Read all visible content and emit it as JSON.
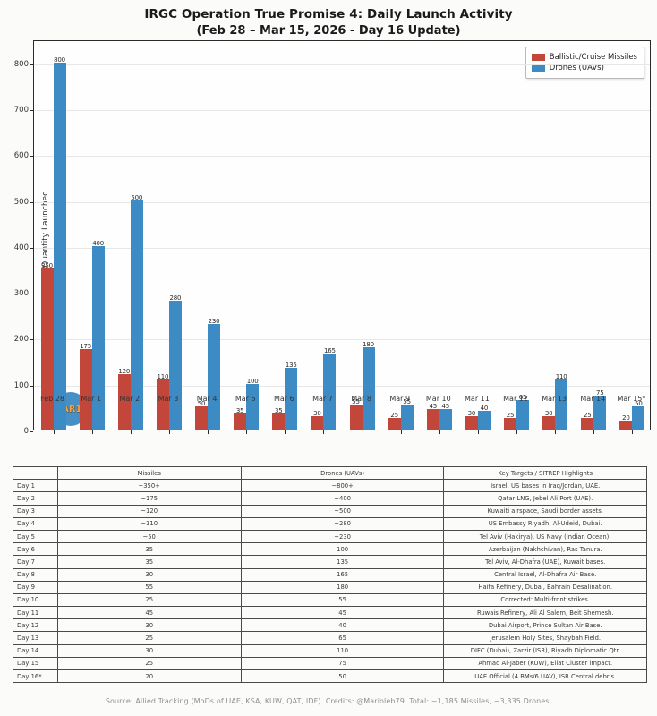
{
  "title": {
    "line1": "IRGC Operation True Promise 4: Daily Launch Activity",
    "line2": "(Feb 28 – Mar 15, 2026 - Day 16 Update)"
  },
  "chart_data": {
    "type": "bar",
    "categories": [
      "Feb 28",
      "Mar 1",
      "Mar 2",
      "Mar 3",
      "Mar 4",
      "Mar 5",
      "Mar 6",
      "Mar 7",
      "Mar 8",
      "Mar 9",
      "Mar 10",
      "Mar 11",
      "Mar 12",
      "Mar 13",
      "Mar 14",
      "Mar 15*"
    ],
    "series": [
      {
        "name": "Ballistic/Cruise Missiles",
        "color": "#c2463a",
        "values": [
          350,
          175,
          120,
          110,
          50,
          35,
          35,
          30,
          55,
          25,
          45,
          30,
          25,
          30,
          25,
          20
        ]
      },
      {
        "name": "Drones (UAVs)",
        "color": "#3d8bc4",
        "values": [
          800,
          400,
          500,
          280,
          230,
          100,
          135,
          165,
          180,
          55,
          45,
          40,
          65,
          110,
          75,
          50
        ]
      }
    ],
    "title": "IRGC Operation True Promise 4: Daily Launch Activity (Feb 28 – Mar 15, 2026 - Day 16 Update)",
    "xlabel": "",
    "ylabel": "Quantity Launched",
    "ylim": [
      0,
      850
    ],
    "yticks": [
      0,
      100,
      200,
      300,
      400,
      500,
      600,
      700,
      800
    ],
    "grid": true,
    "legend_position": "top-right"
  },
  "watermark": "MAR10",
  "table": {
    "headers": [
      "",
      "Missiles",
      "Drones (UAVs)",
      "Key Targets / SITREP Highlights"
    ],
    "rows": [
      {
        "day": "Day 1",
        "missiles": "~350+",
        "drones": "~800+",
        "targets": "Israel, US bases in Iraq/Jordan, UAE."
      },
      {
        "day": "Day 2",
        "missiles": "~175",
        "drones": "~400",
        "targets": "Qatar LNG, Jebel Ali Port (UAE)."
      },
      {
        "day": "Day 3",
        "missiles": "~120",
        "drones": "~500",
        "targets": "Kuwaiti airspace, Saudi border assets."
      },
      {
        "day": "Day 4",
        "missiles": "~110",
        "drones": "~280",
        "targets": "US Embassy Riyadh, Al-Udeid, Dubai."
      },
      {
        "day": "Day 5",
        "missiles": "~50",
        "drones": "~230",
        "targets": "Tel Aviv (Hakirya), US Navy (Indian Ocean)."
      },
      {
        "day": "Day 6",
        "missiles": "35",
        "drones": "100",
        "targets": "Azerbaijan (Nakhchivan), Ras Tanura."
      },
      {
        "day": "Day 7",
        "missiles": "35",
        "drones": "135",
        "targets": "Tel Aviv, Al-Dhafra (UAE), Kuwait bases."
      },
      {
        "day": "Day 8",
        "missiles": "30",
        "drones": "165",
        "targets": "Central Israel, Al-Dhafra Air Base."
      },
      {
        "day": "Day 9",
        "missiles": "55",
        "drones": "180",
        "targets": "Haifa Refinery, Dubai, Bahrain Desalination."
      },
      {
        "day": "Day 10",
        "missiles": "25",
        "drones": "55",
        "targets": "Corrected: Multi-front strikes."
      },
      {
        "day": "Day 11",
        "missiles": "45",
        "drones": "45",
        "targets": "Ruwais Refinery, Ali Al Salem, Beit Shemesh."
      },
      {
        "day": "Day 12",
        "missiles": "30",
        "drones": "40",
        "targets": "Dubai Airport, Prince Sultan Air Base."
      },
      {
        "day": "Day 13",
        "missiles": "25",
        "drones": "65",
        "targets": "Jerusalem Holy Sites, Shaybah Field."
      },
      {
        "day": "Day 14",
        "missiles": "30",
        "drones": "110",
        "targets": "DIFC (Dubai), Zarzir (ISR), Riyadh Diplomatic Qtr."
      },
      {
        "day": "Day 15",
        "missiles": "25",
        "drones": "75",
        "targets": "Ahmad Al-Jaber (KUW), Eilat Cluster impact."
      },
      {
        "day": "Day 16*",
        "missiles": "20",
        "drones": "50",
        "targets": "UAE Official (4 BMs/6 UAV), ISR Central debris."
      }
    ]
  },
  "footer": "Source: Allied Tracking (MoDs of UAE, KSA, KUW, QAT, IDF). Credits: @Marioleb79. Total: ~1,185 Missiles, ~3,335 Drones."
}
